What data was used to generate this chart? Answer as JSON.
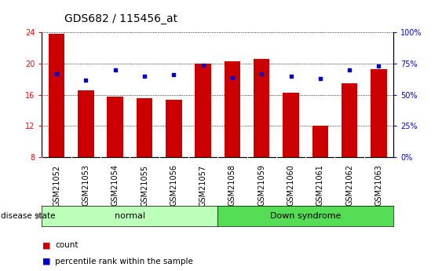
{
  "title": "GDS682 / 115456_at",
  "samples": [
    "GSM21052",
    "GSM21053",
    "GSM21054",
    "GSM21055",
    "GSM21056",
    "GSM21057",
    "GSM21058",
    "GSM21059",
    "GSM21060",
    "GSM21061",
    "GSM21062",
    "GSM21063"
  ],
  "count_values": [
    23.8,
    16.6,
    15.8,
    15.6,
    15.4,
    20.0,
    20.3,
    20.6,
    16.3,
    12.0,
    17.5,
    19.3
  ],
  "percentile_values": [
    67,
    62,
    70,
    65,
    66,
    74,
    64,
    67,
    65,
    63,
    70,
    73
  ],
  "bar_color": "#cc0000",
  "dot_color": "#0000cc",
  "ylim_left": [
    8,
    24
  ],
  "yticks_left": [
    8,
    12,
    16,
    20,
    24
  ],
  "ylim_right": [
    0,
    100
  ],
  "yticks_right": [
    0,
    25,
    50,
    75,
    100
  ],
  "group_normal_label": "normal",
  "group_down_label": "Down syndrome",
  "normal_color": "#bbffbb",
  "down_color": "#55dd55",
  "disease_state_label": "disease state",
  "legend_count": "count",
  "legend_pct": "percentile rank within the sample",
  "plot_bg_color": "#ffffff",
  "xtick_bg_color": "#d0d0d0",
  "title_fontsize": 10,
  "tick_label_fontsize": 7,
  "bar_width": 0.55
}
